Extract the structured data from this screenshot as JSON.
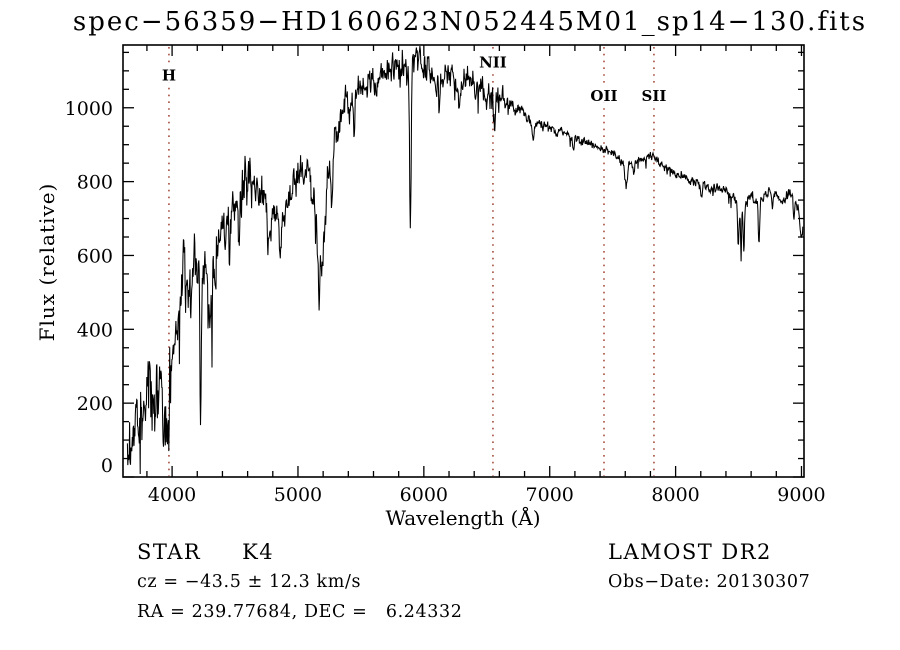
{
  "figure": {
    "background": "#ffffff",
    "axis_color": "#000000",
    "spectrum_color": "#000000",
    "marker_line_color": "#993322"
  },
  "annotations": {
    "class_line_left": "STAR     K4",
    "class_line_right": "LAMOST DR2",
    "cz_line": "cz = −43.5 ± 12.3 km/s",
    "obs_date_line": "Obs−Date: 20130307",
    "radec_line": "RA = 239.77684, DEC =   6.24332"
  },
  "chart_data": {
    "type": "line",
    "title": "spec−56359−HD160623N052445M01_sp14−130.fits",
    "xlabel": "Wavelength (Å)",
    "ylabel": "Flux (relative)",
    "xlim": [
      3610,
      9020
    ],
    "ylim": [
      0,
      1170
    ],
    "x_ticks": [
      4000,
      5000,
      6000,
      7000,
      8000,
      9000
    ],
    "y_ticks": [
      0,
      200,
      400,
      600,
      800,
      1000
    ],
    "x_minor_step": 200,
    "y_minor_step": 50,
    "grid": false,
    "legend": "none",
    "data_range": [
      3645,
      9012
    ],
    "line_markers": [
      {
        "label": "H",
        "wavelength": 3975,
        "label_flux": 1090
      },
      {
        "label": "NII",
        "wavelength": 6549,
        "label_flux": 1125
      },
      {
        "label": "OII",
        "wavelength": 7431,
        "label_flux": 1035
      },
      {
        "label": "SII",
        "wavelength": 7828,
        "label_flux": 1035
      }
    ],
    "spectrum_envelope": [
      [
        3645,
        55
      ],
      [
        3665,
        90
      ],
      [
        3690,
        140
      ],
      [
        3715,
        150
      ],
      [
        3740,
        130
      ],
      [
        3765,
        175
      ],
      [
        3790,
        225
      ],
      [
        3815,
        195
      ],
      [
        3840,
        210
      ],
      [
        3870,
        245
      ],
      [
        3900,
        235
      ],
      [
        3935,
        175
      ],
      [
        3960,
        205
      ],
      [
        3985,
        265
      ],
      [
        4010,
        350
      ],
      [
        4040,
        430
      ],
      [
        4070,
        490
      ],
      [
        4100,
        530
      ],
      [
        4130,
        505
      ],
      [
        4160,
        555
      ],
      [
        4190,
        575
      ],
      [
        4215,
        545
      ],
      [
        4240,
        520
      ],
      [
        4270,
        570
      ],
      [
        4300,
        510
      ],
      [
        4330,
        580
      ],
      [
        4360,
        620
      ],
      [
        4400,
        650
      ],
      [
        4440,
        680
      ],
      [
        4480,
        710
      ],
      [
        4520,
        735
      ],
      [
        4560,
        765
      ],
      [
        4600,
        795
      ],
      [
        4630,
        810
      ],
      [
        4660,
        800
      ],
      [
        4690,
        785
      ],
      [
        4720,
        765
      ],
      [
        4750,
        745
      ],
      [
        4780,
        720
      ],
      [
        4810,
        700
      ],
      [
        4840,
        690
      ],
      [
        4870,
        705
      ],
      [
        4900,
        730
      ],
      [
        4930,
        760
      ],
      [
        4960,
        790
      ],
      [
        5000,
        820
      ],
      [
        5040,
        835
      ],
      [
        5070,
        845
      ],
      [
        5100,
        830
      ],
      [
        5130,
        755
      ],
      [
        5155,
        600
      ],
      [
        5170,
        480
      ],
      [
        5185,
        560
      ],
      [
        5200,
        645
      ],
      [
        5220,
        735
      ],
      [
        5250,
        835
      ],
      [
        5280,
        910
      ],
      [
        5310,
        940
      ],
      [
        5340,
        970
      ],
      [
        5370,
        995
      ],
      [
        5400,
        1020
      ],
      [
        5430,
        1035
      ],
      [
        5460,
        1035
      ],
      [
        5490,
        1040
      ],
      [
        5520,
        1050
      ],
      [
        5550,
        1062
      ],
      [
        5580,
        1075
      ],
      [
        5610,
        1068
      ],
      [
        5640,
        1080
      ],
      [
        5670,
        1090
      ],
      [
        5700,
        1096
      ],
      [
        5730,
        1102
      ],
      [
        5760,
        1110
      ],
      [
        5790,
        1116
      ],
      [
        5820,
        1112
      ],
      [
        5850,
        1106
      ],
      [
        5880,
        1102
      ],
      [
        5910,
        1116
      ],
      [
        5940,
        1126
      ],
      [
        5970,
        1132
      ],
      [
        6000,
        1118
      ],
      [
        6030,
        1102
      ],
      [
        6060,
        1088
      ],
      [
        6090,
        1072
      ],
      [
        6120,
        1062
      ],
      [
        6150,
        1082
      ],
      [
        6180,
        1096
      ],
      [
        6210,
        1088
      ],
      [
        6240,
        1076
      ],
      [
        6270,
        1062
      ],
      [
        6300,
        1072
      ],
      [
        6330,
        1076
      ],
      [
        6360,
        1080
      ],
      [
        6390,
        1066
      ],
      [
        6420,
        1052
      ],
      [
        6450,
        1056
      ],
      [
        6480,
        1060
      ],
      [
        6510,
        1046
      ],
      [
        6540,
        1036
      ],
      [
        6570,
        1022
      ],
      [
        6600,
        1032
      ],
      [
        6630,
        1022
      ],
      [
        6660,
        1013
      ],
      [
        6690,
        1006
      ],
      [
        6720,
        999
      ],
      [
        6750,
        993
      ],
      [
        6780,
        986
      ],
      [
        6810,
        979
      ],
      [
        6840,
        971
      ],
      [
        6870,
        957
      ],
      [
        6900,
        966
      ],
      [
        6930,
        959
      ],
      [
        6960,
        953
      ],
      [
        6990,
        947
      ],
      [
        7020,
        942
      ],
      [
        7050,
        938
      ],
      [
        7080,
        934
      ],
      [
        7110,
        930
      ],
      [
        7140,
        926
      ],
      [
        7170,
        922
      ],
      [
        7200,
        918
      ],
      [
        7230,
        914
      ],
      [
        7260,
        910
      ],
      [
        7290,
        906
      ],
      [
        7320,
        902
      ],
      [
        7350,
        898
      ],
      [
        7380,
        894
      ],
      [
        7410,
        891
      ],
      [
        7440,
        888
      ],
      [
        7470,
        882
      ],
      [
        7500,
        876
      ],
      [
        7530,
        869
      ],
      [
        7560,
        862
      ],
      [
        7590,
        854
      ],
      [
        7620,
        851
      ],
      [
        7650,
        854
      ],
      [
        7680,
        857
      ],
      [
        7710,
        859
      ],
      [
        7740,
        861
      ],
      [
        7770,
        863
      ],
      [
        7800,
        865
      ],
      [
        7830,
        861
      ],
      [
        7860,
        853
      ],
      [
        7890,
        846
      ],
      [
        7920,
        839
      ],
      [
        7950,
        833
      ],
      [
        7980,
        827
      ],
      [
        8010,
        821
      ],
      [
        8040,
        816
      ],
      [
        8070,
        811
      ],
      [
        8100,
        807
      ],
      [
        8130,
        803
      ],
      [
        8160,
        799
      ],
      [
        8190,
        795
      ],
      [
        8220,
        791
      ],
      [
        8250,
        787
      ],
      [
        8280,
        783
      ],
      [
        8310,
        779
      ],
      [
        8340,
        776
      ],
      [
        8370,
        773
      ],
      [
        8400,
        770
      ],
      [
        8430,
        768
      ],
      [
        8460,
        763
      ],
      [
        8490,
        742
      ],
      [
        8510,
        722
      ],
      [
        8530,
        733
      ],
      [
        8550,
        742
      ],
      [
        8580,
        756
      ],
      [
        8610,
        761
      ],
      [
        8640,
        751
      ],
      [
        8670,
        747
      ],
      [
        8700,
        765
      ],
      [
        8730,
        772
      ],
      [
        8760,
        775
      ],
      [
        8790,
        770
      ],
      [
        8820,
        756
      ],
      [
        8850,
        746
      ],
      [
        8880,
        758
      ],
      [
        8910,
        766
      ],
      [
        8940,
        761
      ],
      [
        8970,
        742
      ],
      [
        8990,
        712
      ],
      [
        9005,
        668
      ],
      [
        9012,
        682
      ]
    ],
    "noise_segments": [
      {
        "range": [
          3610,
          4000
        ],
        "amp": 72
      },
      {
        "range": [
          4000,
          4350
        ],
        "amp": 58
      },
      {
        "range": [
          4350,
          4700
        ],
        "amp": 46
      },
      {
        "range": [
          4700,
          5250
        ],
        "amp": 40
      },
      {
        "range": [
          5250,
          5450
        ],
        "amp": 36
      },
      {
        "range": [
          5450,
          6650
        ],
        "amp": 30
      },
      {
        "range": [
          6650,
          7000
        ],
        "amp": 13
      },
      {
        "range": [
          7000,
          7600
        ],
        "amp": 9
      },
      {
        "range": [
          7600,
          8300
        ],
        "amp": 8
      },
      {
        "range": [
          8300,
          9020
        ],
        "amp": 11
      }
    ],
    "absorption_features": [
      {
        "wl": 3934,
        "width": 10,
        "depth": 110
      },
      {
        "wl": 3968,
        "width": 9,
        "depth": 85
      },
      {
        "wl": 4226,
        "width": 7,
        "depth": 300
      },
      {
        "wl": 4300,
        "width": 20,
        "depth": 110
      },
      {
        "wl": 4340,
        "width": 8,
        "depth": 85
      },
      {
        "wl": 4455,
        "width": 8,
        "depth": 95
      },
      {
        "wl": 4530,
        "width": 7,
        "depth": 75
      },
      {
        "wl": 4762,
        "width": 9,
        "depth": 85
      },
      {
        "wl": 4861,
        "width": 9,
        "depth": 105
      },
      {
        "wl": 5110,
        "width": 9,
        "depth": 70
      },
      {
        "wl": 5270,
        "width": 9,
        "depth": 125
      },
      {
        "wl": 5445,
        "width": 7,
        "depth": 85
      },
      {
        "wl": 5893,
        "width": 9,
        "depth": 415
      },
      {
        "wl": 6122,
        "width": 8,
        "depth": 85
      },
      {
        "wl": 6280,
        "width": 7,
        "depth": 65
      },
      {
        "wl": 6497,
        "width": 7,
        "depth": 65
      },
      {
        "wl": 6563,
        "width": 9,
        "depth": 100
      },
      {
        "wl": 6867,
        "width": 13,
        "depth": 48
      },
      {
        "wl": 7190,
        "width": 12,
        "depth": 26
      },
      {
        "wl": 7605,
        "width": 15,
        "depth": 58
      },
      {
        "wl": 7670,
        "width": 8,
        "depth": 38
      },
      {
        "wl": 8205,
        "width": 8,
        "depth": 38
      },
      {
        "wl": 8498,
        "width": 7,
        "depth": 105
      },
      {
        "wl": 8520,
        "width": 5,
        "depth": 145
      },
      {
        "wl": 8542,
        "width": 7,
        "depth": 125
      },
      {
        "wl": 8662,
        "width": 8,
        "depth": 115
      },
      {
        "wl": 8770,
        "width": 7,
        "depth": 48
      },
      {
        "wl": 8940,
        "width": 9,
        "depth": 55
      },
      {
        "wl": 8995,
        "width": 10,
        "depth": 50
      }
    ]
  }
}
